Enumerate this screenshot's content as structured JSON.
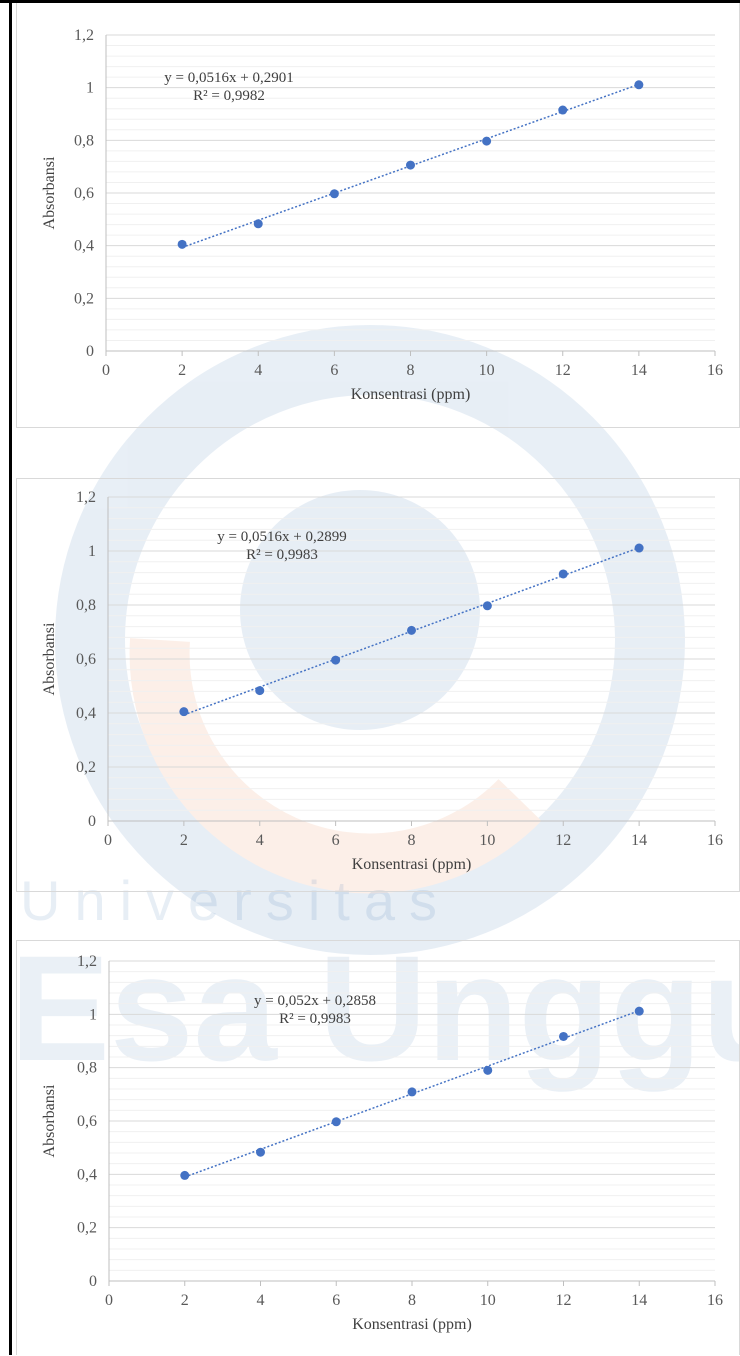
{
  "colors": {
    "point": "#4472c4",
    "trendline": "#4472c4",
    "grid_major": "#d9d9d9",
    "grid_minor": "#f0f0f0",
    "axis": "#bfbfbf"
  },
  "watermark": {
    "text_small": "Universitas",
    "text_large": "Esa Unggul"
  },
  "chart_data": [
    {
      "type": "scatter",
      "x": [
        2,
        4,
        6,
        8,
        10,
        12,
        14
      ],
      "y": [
        0.405,
        0.483,
        0.597,
        0.706,
        0.797,
        0.915,
        1.011
      ],
      "trendline": {
        "type": "linear",
        "slope": 0.0516,
        "intercept": 0.2901
      },
      "equation": "y = 0,0516x + 0,2901",
      "r_squared": "R² = 0,9982",
      "xlabel": "Konsentrasi (ppm)",
      "ylabel": "Absorbansi",
      "xlim": [
        0,
        16
      ],
      "ylim": [
        0,
        1.2
      ],
      "xticks": [
        "0",
        "2",
        "4",
        "6",
        "8",
        "10",
        "12",
        "14",
        "16"
      ],
      "yticks": [
        "0",
        "0,2",
        "0,4",
        "0,6",
        "0,8",
        "1",
        "1,2"
      ],
      "grid": true,
      "legend": "none"
    },
    {
      "type": "scatter",
      "x": [
        2,
        4,
        6,
        8,
        10,
        12,
        14
      ],
      "y": [
        0.405,
        0.483,
        0.596,
        0.706,
        0.797,
        0.915,
        1.011
      ],
      "trendline": {
        "type": "linear",
        "slope": 0.0516,
        "intercept": 0.2899
      },
      "equation": "y = 0,0516x + 0,2899",
      "r_squared": "R² = 0,9983",
      "xlabel": "Konsentrasi (ppm)",
      "ylabel": "Absorbansi",
      "xlim": [
        0,
        16
      ],
      "ylim": [
        0,
        1.2
      ],
      "xticks": [
        "0",
        "2",
        "4",
        "6",
        "8",
        "10",
        "12",
        "14",
        "16"
      ],
      "yticks": [
        "0",
        "0,2",
        "0,4",
        "0,6",
        "0,8",
        "1",
        "1,2"
      ],
      "grid": true,
      "legend": "none"
    },
    {
      "type": "scatter",
      "x": [
        2,
        4,
        6,
        8,
        10,
        12,
        14
      ],
      "y": [
        0.396,
        0.483,
        0.597,
        0.709,
        0.79,
        0.917,
        1.012
      ],
      "trendline": {
        "type": "linear",
        "slope": 0.052,
        "intercept": 0.2858
      },
      "equation": "y = 0,052x + 0,2858",
      "r_squared": "R² = 0,9983",
      "xlabel": "Konsentrasi (ppm)",
      "ylabel": "Absorbansi",
      "xlim": [
        0,
        16
      ],
      "ylim": [
        0,
        1.2
      ],
      "xticks": [
        "0",
        "2",
        "4",
        "6",
        "8",
        "10",
        "12",
        "14",
        "16"
      ],
      "yticks": [
        "0",
        "0,2",
        "0,4",
        "0,6",
        "0,8",
        "1",
        "1,2"
      ],
      "grid": true,
      "legend": "none"
    }
  ]
}
